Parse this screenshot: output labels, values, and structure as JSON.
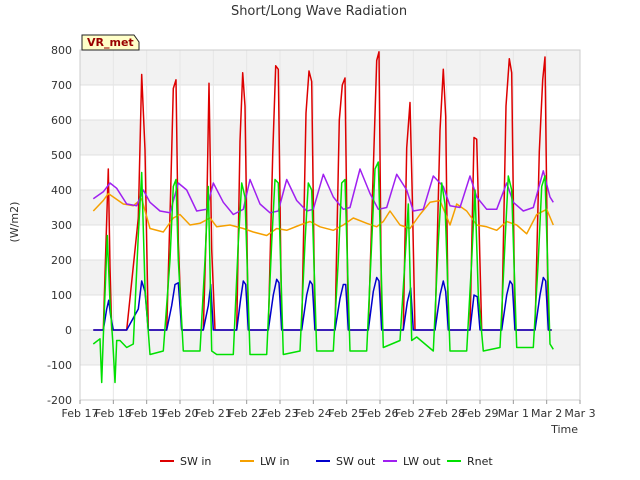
{
  "chart_data": {
    "type": "line",
    "title": "Short/Long Wave Radiation",
    "xlabel": "Time",
    "ylabel": "(W/m2)",
    "badge": "VR_met",
    "ylim": [
      -200,
      800
    ],
    "yticks": [
      -200,
      -100,
      0,
      100,
      200,
      300,
      400,
      500,
      600,
      700,
      800
    ],
    "xlim": [
      0,
      15
    ],
    "xticks": [
      {
        "x": 0,
        "label": "Feb 17"
      },
      {
        "x": 1,
        "label": "Feb 18"
      },
      {
        "x": 2,
        "label": "Feb 19"
      },
      {
        "x": 3,
        "label": "Feb 20"
      },
      {
        "x": 4,
        "label": "Feb 21"
      },
      {
        "x": 5,
        "label": "Feb 22"
      },
      {
        "x": 6,
        "label": "Feb 23"
      },
      {
        "x": 7,
        "label": "Feb 24"
      },
      {
        "x": 8,
        "label": "Feb 25"
      },
      {
        "x": 9,
        "label": "Feb 26"
      },
      {
        "x": 10,
        "label": "Feb 27"
      },
      {
        "x": 11,
        "label": "Feb 28"
      },
      {
        "x": 12,
        "label": "Feb 29"
      },
      {
        "x": 13,
        "label": "Mar 1"
      },
      {
        "x": 14,
        "label": "Mar 2"
      },
      {
        "x": 15,
        "label": "Mar 3"
      }
    ],
    "legend_position": "bottom",
    "grid": "horizontal bands",
    "series": [
      {
        "name": "SW in",
        "color": "#dd0000",
        "x": [
          0.4,
          0.7,
          0.78,
          0.85,
          0.9,
          0.95,
          1.1,
          1.4,
          1.75,
          1.85,
          1.95,
          2.05,
          2.2,
          2.6,
          2.72,
          2.8,
          2.88,
          2.95,
          3.05,
          3.2,
          3.7,
          3.8,
          3.87,
          3.95,
          4.05,
          4.2,
          4.7,
          4.8,
          4.88,
          4.95,
          5.05,
          5.2,
          5.65,
          5.78,
          5.87,
          5.95,
          6.05,
          6.2,
          6.65,
          6.78,
          6.87,
          6.95,
          7.05,
          7.2,
          7.65,
          7.78,
          7.87,
          7.95,
          8.05,
          8.2,
          8.65,
          8.8,
          8.9,
          8.97,
          9.05,
          9.2,
          9.7,
          9.8,
          9.9,
          9.97,
          10.05,
          10.2,
          10.65,
          10.8,
          10.9,
          10.97,
          11.05,
          11.2,
          11.7,
          11.82,
          11.9,
          11.97,
          12.05,
          12.2,
          12.65,
          12.78,
          12.88,
          12.95,
          13.05,
          13.2,
          13.65,
          13.78,
          13.88,
          13.95,
          14.05,
          14.15
        ],
        "y": [
          0,
          0,
          250,
          460,
          180,
          0,
          0,
          0,
          320,
          730,
          515,
          0,
          0,
          0,
          400,
          690,
          715,
          250,
          0,
          0,
          0,
          330,
          705,
          230,
          0,
          0,
          0,
          540,
          735,
          640,
          0,
          0,
          0,
          500,
          755,
          745,
          0,
          0,
          0,
          620,
          740,
          710,
          0,
          0,
          0,
          600,
          700,
          720,
          0,
          0,
          0,
          460,
          770,
          795,
          0,
          0,
          0,
          520,
          650,
          380,
          0,
          0,
          0,
          570,
          745,
          610,
          0,
          0,
          0,
          550,
          545,
          300,
          0,
          0,
          0,
          640,
          775,
          735,
          0,
          0,
          0,
          510,
          715,
          780,
          0,
          0
        ]
      },
      {
        "name": "LW in",
        "color": "#f5a000",
        "x": [
          0.4,
          0.7,
          0.85,
          1.0,
          1.3,
          1.6,
          1.85,
          2.1,
          2.5,
          2.8,
          3.0,
          3.3,
          3.6,
          3.9,
          4.1,
          4.5,
          4.9,
          5.2,
          5.6,
          5.9,
          6.2,
          6.6,
          6.9,
          7.2,
          7.6,
          7.9,
          8.2,
          8.6,
          8.9,
          9.1,
          9.3,
          9.6,
          9.9,
          10.2,
          10.5,
          10.8,
          11.1,
          11.3,
          11.6,
          11.9,
          12.2,
          12.5,
          12.8,
          13.1,
          13.4,
          13.7,
          14.0,
          14.2
        ],
        "y": [
          340,
          370,
          390,
          380,
          360,
          355,
          375,
          290,
          280,
          320,
          330,
          300,
          305,
          320,
          295,
          300,
          290,
          280,
          270,
          290,
          285,
          300,
          310,
          295,
          285,
          300,
          320,
          305,
          295,
          310,
          340,
          300,
          290,
          330,
          365,
          370,
          300,
          360,
          340,
          300,
          295,
          285,
          310,
          300,
          275,
          330,
          345,
          300
        ]
      },
      {
        "name": "SW out",
        "color": "#0000cc",
        "x": [
          0.4,
          0.7,
          0.8,
          0.86,
          0.92,
          1.0,
          1.4,
          1.75,
          1.85,
          1.95,
          2.05,
          2.6,
          2.75,
          2.85,
          2.95,
          3.05,
          3.7,
          3.85,
          3.92,
          4.0,
          4.7,
          4.82,
          4.9,
          4.97,
          5.05,
          5.65,
          5.8,
          5.9,
          5.97,
          6.05,
          6.65,
          6.8,
          6.9,
          6.97,
          7.05,
          7.65,
          7.8,
          7.9,
          7.97,
          8.05,
          8.65,
          8.8,
          8.9,
          8.97,
          9.05,
          9.7,
          9.82,
          9.92,
          10.0,
          10.65,
          10.8,
          10.9,
          10.97,
          11.05,
          11.7,
          11.82,
          11.92,
          12.0,
          12.65,
          12.8,
          12.9,
          12.97,
          13.05,
          13.65,
          13.8,
          13.9,
          13.97,
          14.05,
          14.15
        ],
        "y": [
          0,
          0,
          60,
          85,
          40,
          0,
          0,
          60,
          140,
          110,
          0,
          0,
          70,
          130,
          135,
          0,
          0,
          70,
          130,
          0,
          0,
          90,
          140,
          130,
          0,
          0,
          100,
          145,
          135,
          0,
          0,
          100,
          140,
          130,
          0,
          0,
          90,
          130,
          130,
          0,
          0,
          110,
          150,
          140,
          0,
          0,
          80,
          120,
          0,
          0,
          100,
          140,
          110,
          0,
          0,
          100,
          95,
          0,
          0,
          100,
          140,
          130,
          0,
          0,
          100,
          150,
          140,
          0,
          0
        ]
      },
      {
        "name": "LW out",
        "color": "#a020f0",
        "x": [
          0.4,
          0.7,
          0.9,
          1.1,
          1.4,
          1.7,
          1.9,
          2.1,
          2.4,
          2.7,
          2.95,
          3.2,
          3.5,
          3.8,
          4.0,
          4.3,
          4.6,
          4.9,
          5.1,
          5.4,
          5.7,
          5.95,
          6.2,
          6.5,
          6.8,
          7.0,
          7.3,
          7.6,
          7.9,
          8.1,
          8.4,
          8.7,
          8.95,
          9.2,
          9.5,
          9.8,
          10.0,
          10.3,
          10.6,
          10.9,
          11.1,
          11.4,
          11.7,
          11.9,
          12.2,
          12.5,
          12.8,
          13.0,
          13.3,
          13.6,
          13.9,
          14.1,
          14.2
        ],
        "y": [
          375,
          395,
          420,
          405,
          360,
          355,
          400,
          365,
          340,
          335,
          420,
          400,
          340,
          345,
          420,
          365,
          330,
          345,
          430,
          360,
          335,
          340,
          430,
          370,
          340,
          345,
          445,
          380,
          345,
          350,
          460,
          390,
          345,
          350,
          445,
          400,
          340,
          345,
          440,
          410,
          355,
          350,
          440,
          380,
          345,
          345,
          420,
          365,
          340,
          350,
          455,
          380,
          365
        ]
      },
      {
        "name": "Rnet",
        "color": "#00e000",
        "x": [
          0.4,
          0.6,
          0.65,
          0.7,
          0.82,
          0.9,
          0.98,
          1.05,
          1.1,
          1.2,
          1.4,
          1.6,
          1.75,
          1.85,
          1.95,
          2.1,
          2.5,
          2.7,
          2.8,
          2.88,
          2.95,
          3.1,
          3.6,
          3.75,
          3.85,
          3.95,
          4.1,
          4.6,
          4.75,
          4.85,
          4.95,
          5.1,
          5.6,
          5.75,
          5.85,
          5.95,
          6.1,
          6.6,
          6.75,
          6.85,
          6.95,
          7.1,
          7.6,
          7.75,
          7.85,
          7.95,
          8.1,
          8.6,
          8.75,
          8.85,
          8.95,
          9.1,
          9.6,
          9.75,
          9.85,
          9.95,
          10.1,
          10.6,
          10.75,
          10.85,
          10.95,
          11.1,
          11.6,
          11.75,
          11.85,
          11.95,
          12.1,
          12.6,
          12.75,
          12.85,
          12.95,
          13.1,
          13.6,
          13.75,
          13.85,
          13.95,
          14.1,
          14.2
        ],
        "y": [
          -40,
          -25,
          -150,
          -20,
          270,
          80,
          -30,
          -150,
          -30,
          -30,
          -50,
          -40,
          270,
          450,
          120,
          -70,
          -60,
          200,
          410,
          430,
          200,
          -60,
          -60,
          200,
          410,
          -60,
          -70,
          -70,
          250,
          420,
          380,
          -70,
          -70,
          250,
          430,
          420,
          -70,
          -60,
          250,
          420,
          400,
          -60,
          -60,
          200,
          420,
          430,
          -60,
          -60,
          250,
          460,
          480,
          -50,
          -30,
          200,
          360,
          -30,
          -20,
          -60,
          250,
          420,
          360,
          -60,
          -60,
          200,
          400,
          100,
          -60,
          -50,
          250,
          440,
          400,
          -50,
          -50,
          200,
          410,
          440,
          -40,
          -55
        ]
      }
    ]
  }
}
